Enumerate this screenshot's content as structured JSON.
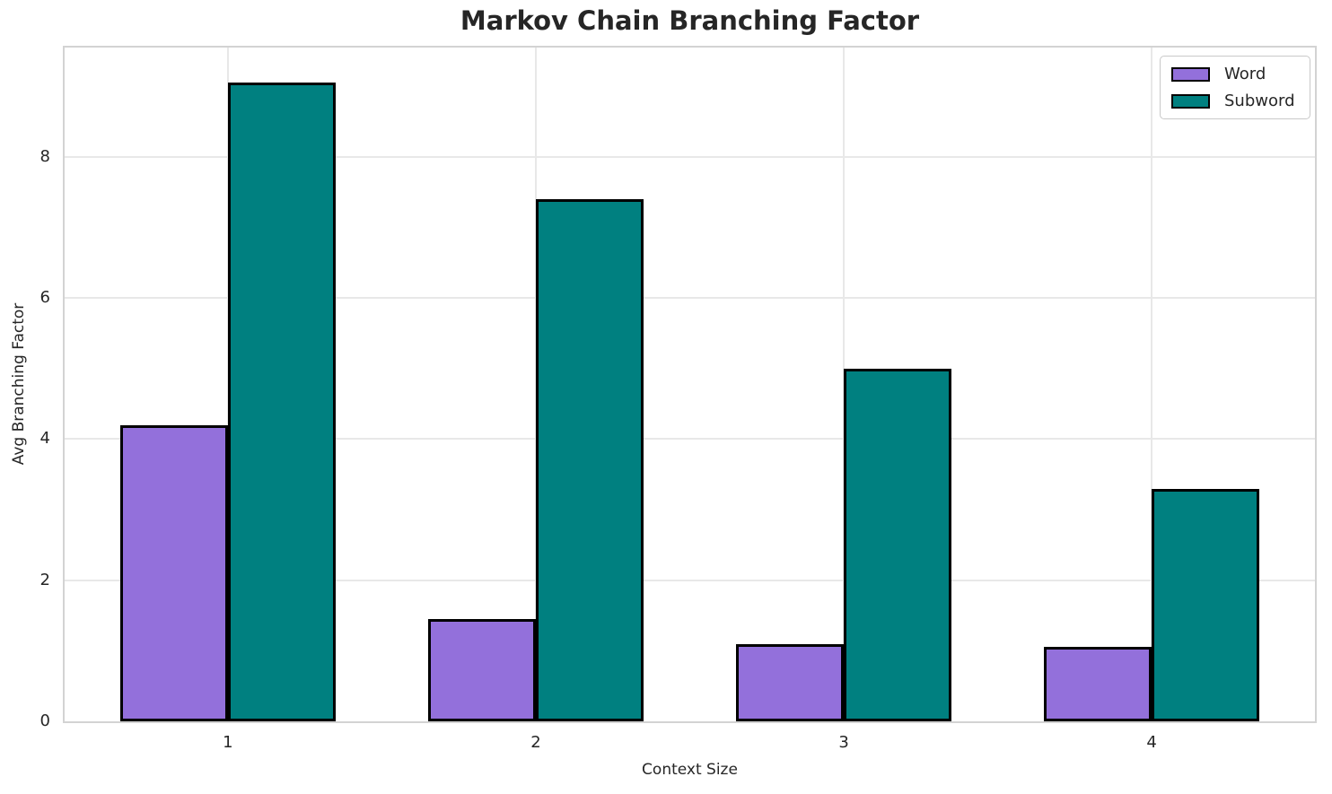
{
  "chart_data": {
    "type": "bar",
    "title": "Markov Chain Branching Factor",
    "xlabel": "Context Size",
    "ylabel": "Avg Branching Factor",
    "categories": [
      "1",
      "2",
      "3",
      "4"
    ],
    "series": [
      {
        "name": "Word",
        "color": "#9370DB",
        "values": [
          4.2,
          1.45,
          1.1,
          1.05
        ]
      },
      {
        "name": "Subword",
        "color": "#008080",
        "values": [
          9.05,
          7.4,
          5.0,
          3.3
        ]
      }
    ],
    "bar_width": 0.35,
    "bar_edge_color": "#000000",
    "yticks": [
      0,
      2,
      4,
      6,
      8
    ],
    "ylim": [
      0,
      9.55
    ],
    "xlim": [
      -0.53,
      3.53
    ],
    "grid": true,
    "legend_position": "upper right"
  },
  "style": {
    "background_color": "#ffffff",
    "grid_color": "#e8e8e8",
    "spine_color": "#d3d3d3",
    "text_color": "#262626"
  }
}
